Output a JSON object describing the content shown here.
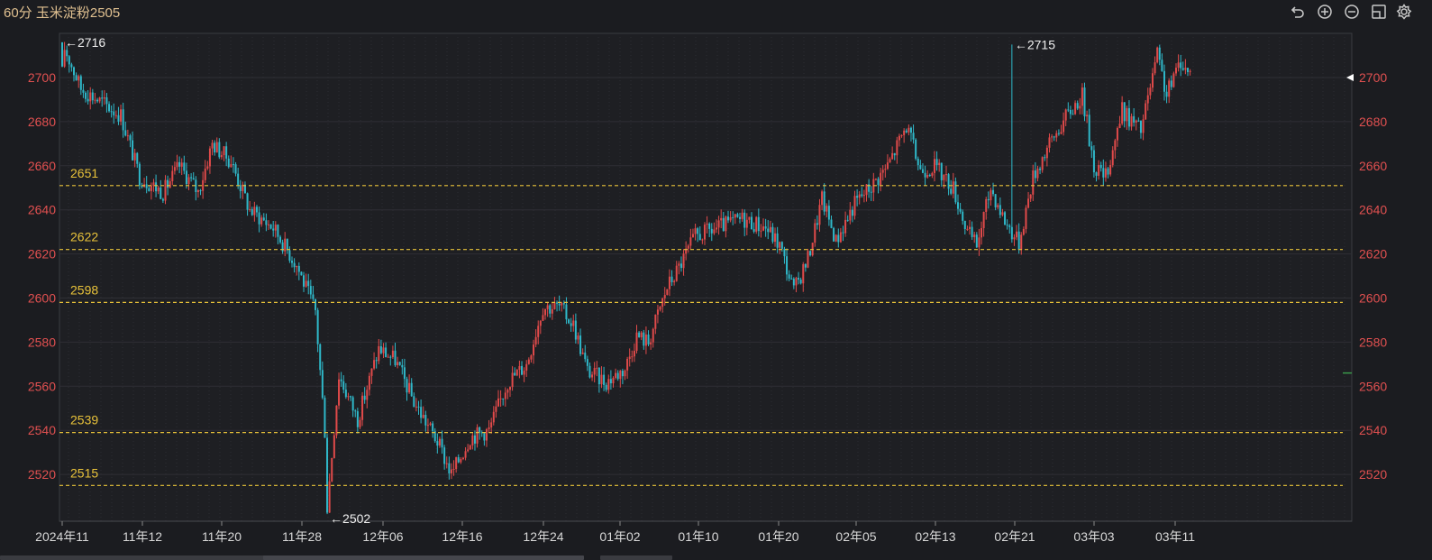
{
  "header": {
    "title": "60分 玉米淀粉2505",
    "toolbar": [
      {
        "icon": "undo-icon"
      },
      {
        "icon": "zoom-in-icon"
      },
      {
        "icon": "zoom-out-icon"
      },
      {
        "icon": "layout-icon"
      },
      {
        "icon": "settings-icon"
      }
    ]
  },
  "chart_data": {
    "type": "candlestick",
    "instrument": "玉米淀粉2505",
    "period": "60分",
    "ylim": [
      2500,
      2720
    ],
    "y_ticks": [
      "2520",
      "2540",
      "2560",
      "2580",
      "2600",
      "2620",
      "2640",
      "2660",
      "2680",
      "2700"
    ],
    "x_ticks": [
      "2024年11",
      "11年12",
      "11年20",
      "11年28",
      "12年06",
      "12年16",
      "12年24",
      "01年02",
      "01年10",
      "01年20",
      "02年05",
      "02年13",
      "02年21",
      "03年03",
      "03年11"
    ],
    "support_resistance_levels": [
      {
        "label": "2651",
        "value": 2651
      },
      {
        "label": "2622",
        "value": 2622
      },
      {
        "label": "2598",
        "value": 2598
      },
      {
        "label": "2539",
        "value": 2539
      },
      {
        "label": "2515",
        "value": 2515
      }
    ],
    "extreme_labels": [
      {
        "label": "←2716",
        "value": 2716,
        "bar": 0
      },
      {
        "label": "←2502",
        "value": 2502,
        "bar": 113
      },
      {
        "label": "←2715",
        "value": 2715,
        "bar": 405
      }
    ],
    "current_price_marker": 2700,
    "colors": {
      "up": "#e04a4a",
      "down": "#2fb8c9",
      "level": "#e8c23a",
      "axis_text": "#e05050",
      "label": "#e8c23a"
    },
    "path_anchors": [
      [
        0,
        2716
      ],
      [
        8,
        2695
      ],
      [
        18,
        2688
      ],
      [
        25,
        2683
      ],
      [
        33,
        2655
      ],
      [
        43,
        2648
      ],
      [
        50,
        2660
      ],
      [
        58,
        2648
      ],
      [
        64,
        2670
      ],
      [
        72,
        2662
      ],
      [
        80,
        2640
      ],
      [
        90,
        2632
      ],
      [
        100,
        2615
      ],
      [
        108,
        2594
      ],
      [
        112,
        2540
      ],
      [
        113,
        2505
      ],
      [
        118,
        2565
      ],
      [
        126,
        2545
      ],
      [
        135,
        2577
      ],
      [
        142,
        2572
      ],
      [
        150,
        2553
      ],
      [
        160,
        2535
      ],
      [
        166,
        2520
      ],
      [
        174,
        2537
      ],
      [
        182,
        2540
      ],
      [
        190,
        2562
      ],
      [
        198,
        2570
      ],
      [
        205,
        2596
      ],
      [
        212,
        2596
      ],
      [
        218,
        2588
      ],
      [
        224,
        2567
      ],
      [
        232,
        2562
      ],
      [
        240,
        2568
      ],
      [
        245,
        2583
      ],
      [
        250,
        2580
      ],
      [
        258,
        2605
      ],
      [
        262,
        2612
      ],
      [
        270,
        2628
      ],
      [
        280,
        2632
      ],
      [
        290,
        2636
      ],
      [
        300,
        2632
      ],
      [
        306,
        2624
      ],
      [
        312,
        2603
      ],
      [
        318,
        2618
      ],
      [
        324,
        2645
      ],
      [
        330,
        2626
      ],
      [
        338,
        2643
      ],
      [
        346,
        2652
      ],
      [
        352,
        2660
      ],
      [
        360,
        2678
      ],
      [
        366,
        2658
      ],
      [
        372,
        2660
      ],
      [
        380,
        2650
      ],
      [
        386,
        2630
      ],
      [
        390,
        2624
      ],
      [
        396,
        2650
      ],
      [
        402,
        2635
      ],
      [
        408,
        2625
      ],
      [
        414,
        2655
      ],
      [
        420,
        2668
      ],
      [
        428,
        2682
      ],
      [
        435,
        2692
      ],
      [
        440,
        2660
      ],
      [
        445,
        2655
      ],
      [
        452,
        2685
      ],
      [
        460,
        2676
      ],
      [
        467,
        2710
      ],
      [
        471,
        2692
      ],
      [
        477,
        2708
      ],
      [
        480,
        2702
      ]
    ]
  }
}
